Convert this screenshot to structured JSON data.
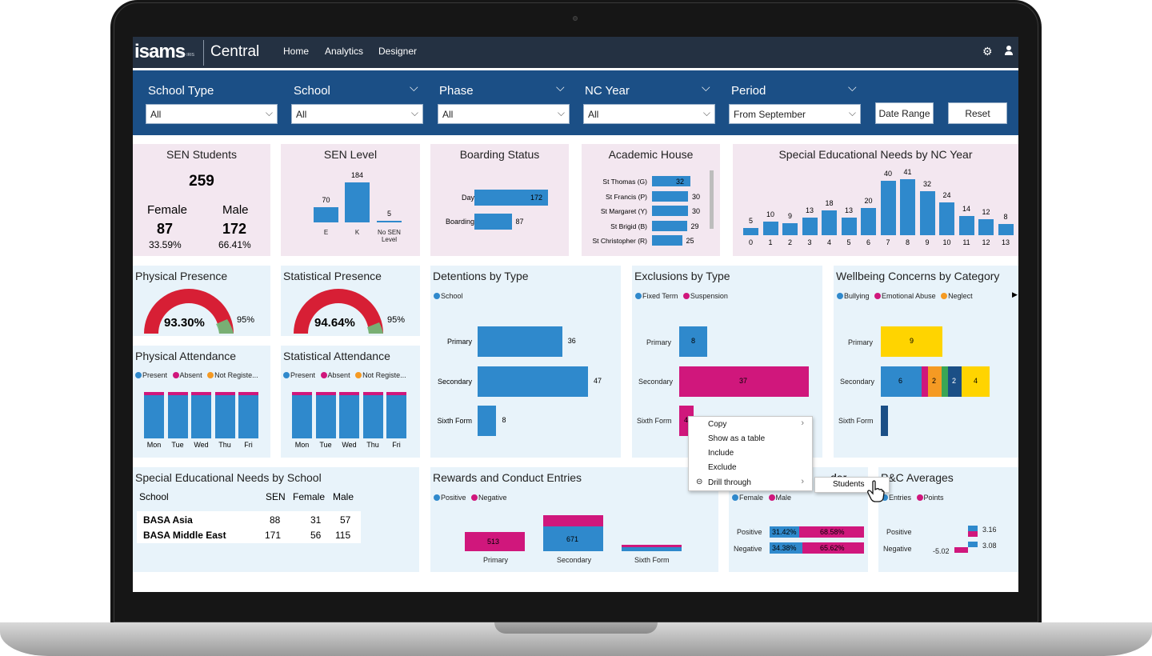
{
  "app": {
    "logo": "isams",
    "logo_by": "By IRIS",
    "name": "Central"
  },
  "nav": {
    "items": [
      "Home",
      "Analytics",
      "Designer"
    ],
    "settings_icon": "gear-icon",
    "user_icon": "user-icon"
  },
  "filters": {
    "school_type": {
      "label": "School Type",
      "value": "All"
    },
    "school": {
      "label": "School",
      "value": "All"
    },
    "phase": {
      "label": "Phase",
      "value": "All"
    },
    "nc_year": {
      "label": "NC Year",
      "value": "All"
    },
    "period": {
      "label": "Period",
      "value": "From September"
    },
    "date_range": "Date Range",
    "reset": "Reset"
  },
  "sen_students": {
    "title": "SEN Students",
    "total": "259",
    "female_label": "Female",
    "male_label": "Male",
    "female": "87",
    "male": "172",
    "female_pct": "33.59%",
    "male_pct": "66.41%"
  },
  "sen_level": {
    "title": "SEN Level",
    "categories": [
      "E",
      "K",
      "No SEN Level"
    ],
    "values": [
      70,
      184,
      5
    ]
  },
  "boarding": {
    "title": "Boarding Status",
    "categories": [
      "Day",
      "Boarding"
    ],
    "values": [
      172,
      87
    ]
  },
  "house": {
    "title": "Academic House",
    "categories": [
      "St Thomas (G)",
      "St Francis (P)",
      "St Margaret (Y)",
      "St Brigid (B)",
      "St Christopher (R)"
    ],
    "values": [
      32,
      30,
      30,
      29,
      25
    ]
  },
  "sen_nc": {
    "title": "Special Educational Needs by NC Year",
    "categories": [
      "0",
      "1",
      "2",
      "3",
      "4",
      "5",
      "6",
      "7",
      "8",
      "9",
      "10",
      "11",
      "12",
      "13"
    ],
    "values": [
      5,
      10,
      9,
      13,
      18,
      13,
      20,
      40,
      41,
      32,
      24,
      14,
      12,
      8
    ]
  },
  "physical_presence": {
    "title": "Physical Presence",
    "value": "93.30%",
    "target": "95%"
  },
  "statistical_presence": {
    "title": "Statistical Presence",
    "value": "94.64%",
    "target": "95%"
  },
  "physical_attendance": {
    "title": "Physical Attendance",
    "legend": [
      "Present",
      "Absent",
      "Not Registe..."
    ],
    "days": [
      "Mon",
      "Tue",
      "Wed",
      "Thu",
      "Fri"
    ]
  },
  "statistical_attendance": {
    "title": "Statistical Attendance",
    "legend": [
      "Present",
      "Absent",
      "Not Registe..."
    ],
    "days": [
      "Mon",
      "Tue",
      "Wed",
      "Thu",
      "Fri"
    ]
  },
  "detentions": {
    "title": "Detentions by Type",
    "legend": "School",
    "categories": [
      "Primary",
      "Secondary",
      "Sixth Form"
    ],
    "values": [
      36,
      47,
      8
    ]
  },
  "exclusions": {
    "title": "Exclusions by Type",
    "legend": [
      "Fixed Term",
      "Suspension"
    ],
    "categories": [
      "Primary",
      "Secondary",
      "Sixth Form"
    ],
    "labels": [
      "8",
      "37",
      "4"
    ]
  },
  "wellbeing": {
    "title": "Wellbeing Concerns by Category",
    "legend": [
      "Bullying",
      "Emotional Abuse",
      "Neglect"
    ],
    "categories": [
      "Primary",
      "Secondary",
      "Sixth Form"
    ],
    "labels": [
      "9",
      "6",
      "2",
      "2",
      "4"
    ]
  },
  "sen_school": {
    "title": "Special Educational Needs by School",
    "headers": [
      "School",
      "SEN",
      "Female",
      "Male"
    ],
    "rows": [
      [
        "BASA Asia",
        "88",
        "31",
        "57"
      ],
      [
        "BASA Middle East",
        "171",
        "56",
        "115"
      ]
    ]
  },
  "rewards": {
    "title": "Rewards and Conduct Entries",
    "legend": [
      "Positive",
      "Negative"
    ],
    "categories": [
      "Primary",
      "Secondary",
      "Sixth Form"
    ],
    "labels": [
      "513",
      "671"
    ]
  },
  "gender": {
    "title_fragment": "der",
    "legend": [
      "Female",
      "Male"
    ],
    "rows": [
      {
        "label": "Positive",
        "female": "31.42%",
        "male": "68.58%"
      },
      {
        "label": "Negative",
        "female": "34.38%",
        "male": "65.62%"
      }
    ]
  },
  "pc_avg": {
    "title": "P&C Averages",
    "legend": [
      "Entries",
      "Points"
    ],
    "rows": [
      {
        "label": "Positive",
        "value": "3.16"
      },
      {
        "label": "Negative",
        "value": "3.08",
        "neg": "-5.02"
      }
    ]
  },
  "context_menu": {
    "items": [
      "Copy",
      "Show as a table",
      "Include",
      "Exclude",
      "Drill through"
    ],
    "submenu": "Students"
  },
  "colors": {
    "blue": "#2f89cc",
    "magenta": "#d0177c",
    "orange": "#f59a23",
    "yellow": "#ffd400",
    "green": "#3aa655",
    "red_gauge": "#d71f35",
    "navy": "#1b4f86"
  }
}
